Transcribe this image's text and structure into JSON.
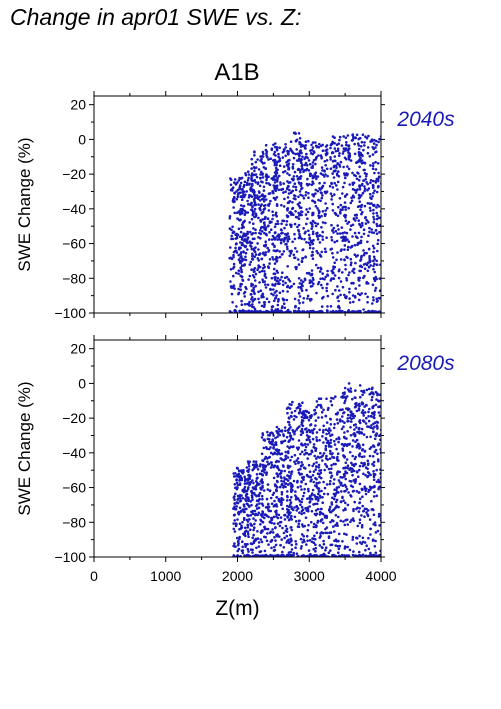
{
  "page": {
    "title": "Change in apr01 SWE vs. Z:",
    "scenario": "A1B"
  },
  "colors": {
    "points": "#1a1ab8",
    "label": "#1a1ab8"
  },
  "chart_data": [
    {
      "type": "scatter",
      "panel_label": "2040s",
      "ylabel": "SWE Change (%)",
      "xlabel": "",
      "xlim": [
        0,
        4000
      ],
      "ylim": [
        -100,
        25
      ],
      "yticks": [
        "-100",
        "-80",
        "-60",
        "-40",
        "-20",
        "0",
        "20"
      ],
      "xticks": [],
      "series": [
        {
          "columns": [
            {
              "z": 2000,
              "y_min": -100,
              "y_max": -22
            },
            {
              "z": 2150,
              "y_min": -100,
              "y_max": -18
            },
            {
              "z": 2300,
              "y_min": -100,
              "y_max": -5
            },
            {
              "z": 2450,
              "y_min": -100,
              "y_max": -3
            },
            {
              "z": 2600,
              "y_min": -100,
              "y_max": -2
            },
            {
              "z": 2800,
              "y_min": -100,
              "y_max": 4
            },
            {
              "z": 2950,
              "y_min": -100,
              "y_max": -1
            },
            {
              "z": 3150,
              "y_min": -100,
              "y_max": -1
            },
            {
              "z": 3400,
              "y_min": -100,
              "y_max": 2
            },
            {
              "z": 3600,
              "y_min": -100,
              "y_max": 3
            },
            {
              "z": 3800,
              "y_min": -100,
              "y_max": 3
            },
            {
              "z": 4000,
              "y_min": -100,
              "y_max": 2
            }
          ]
        }
      ]
    },
    {
      "type": "scatter",
      "panel_label": "2080s",
      "ylabel": "SWE Change (%)",
      "xlabel": "Z(m)",
      "xlim": [
        0,
        4000
      ],
      "ylim": [
        -100,
        25
      ],
      "yticks": [
        "-100",
        "-80",
        "-60",
        "-40",
        "-20",
        "0",
        "20"
      ],
      "xticks": [
        "0",
        "1000",
        "2000",
        "3000",
        "4000"
      ],
      "series": [
        {
          "columns": [
            {
              "z": 2050,
              "y_min": -100,
              "y_max": -48
            },
            {
              "z": 2250,
              "y_min": -100,
              "y_max": -45
            },
            {
              "z": 2450,
              "y_min": -100,
              "y_max": -28
            },
            {
              "z": 2650,
              "y_min": -100,
              "y_max": -25
            },
            {
              "z": 2800,
              "y_min": -100,
              "y_max": -10
            },
            {
              "z": 3000,
              "y_min": -100,
              "y_max": -15
            },
            {
              "z": 3200,
              "y_min": -100,
              "y_max": -8
            },
            {
              "z": 3400,
              "y_min": -100,
              "y_max": -5
            },
            {
              "z": 3600,
              "y_min": -100,
              "y_max": 0
            },
            {
              "z": 3800,
              "y_min": -100,
              "y_max": -2
            },
            {
              "z": 4000,
              "y_min": -100,
              "y_max": -5
            }
          ]
        }
      ]
    }
  ]
}
